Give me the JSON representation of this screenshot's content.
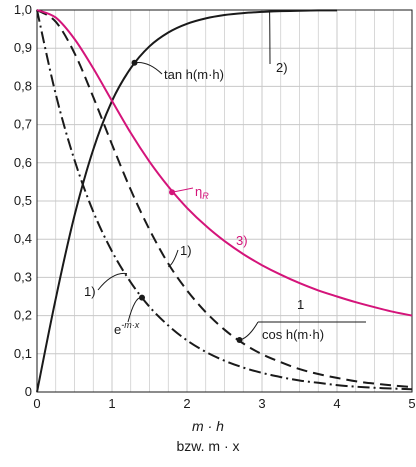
{
  "chart_data": {
    "type": "line",
    "xlim": [
      0,
      5
    ],
    "ylim": [
      0,
      1
    ],
    "grid": true,
    "x_ticks": [
      "0",
      "1",
      "2",
      "3",
      "4",
      "5"
    ],
    "y_ticks": [
      "0",
      "0,1",
      "0,2",
      "0,3",
      "0,4",
      "0,5",
      "0,6",
      "0,7",
      "0,8",
      "0,9",
      "1,0"
    ],
    "xlabel": "m · h",
    "xlabel_alt": "bzw.  m · x",
    "colors": {
      "black": "#1a1a1a",
      "magenta": "#d4147a",
      "grid": "#c8c8c8"
    },
    "series": [
      {
        "x": [
          0,
          0.25,
          0.5,
          0.75,
          1,
          1.25,
          1.5,
          1.75,
          2,
          2.25,
          2.5,
          2.75,
          3,
          3.25,
          3.5,
          3.75,
          4,
          4.25,
          4.5,
          4.75,
          5
        ],
        "values": [
          1.0,
          0.969,
          0.887,
          0.772,
          0.648,
          0.529,
          0.425,
          0.336,
          0.266,
          0.209,
          0.163,
          0.127,
          0.099,
          0.078,
          0.06,
          0.047,
          0.037,
          0.028,
          0.022,
          0.017,
          0.013
        ],
        "style": "dashed",
        "color": "#1a1a1a"
      },
      {
        "x": [
          0,
          0.25,
          0.5,
          0.75,
          1,
          1.25,
          1.5,
          1.75,
          2,
          2.25,
          2.5,
          2.75,
          3,
          3.25,
          3.5,
          3.75,
          4,
          4.25,
          4.5,
          4.75,
          5
        ],
        "values": [
          1.0,
          0.779,
          0.607,
          0.472,
          0.368,
          0.287,
          0.223,
          0.174,
          0.135,
          0.105,
          0.082,
          0.064,
          0.05,
          0.039,
          0.03,
          0.024,
          0.018,
          0.014,
          0.011,
          0.009,
          0.007
        ],
        "style": "dashdot",
        "color": "#1a1a1a"
      },
      {
        "x": [
          0,
          0.25,
          0.5,
          0.75,
          1,
          1.25,
          1.5,
          1.75,
          2,
          2.25,
          2.5,
          2.75,
          3,
          3.25,
          3.5,
          3.75,
          4
        ],
        "values": [
          0,
          0.245,
          0.462,
          0.635,
          0.762,
          0.848,
          0.905,
          0.941,
          0.964,
          0.978,
          0.987,
          0.992,
          0.995,
          0.997,
          0.998,
          0.999,
          0.999
        ],
        "style": "solid",
        "color": "#1a1a1a"
      },
      {
        "x": [
          0,
          0.25,
          0.5,
          0.75,
          1,
          1.25,
          1.5,
          1.75,
          2,
          2.25,
          2.5,
          2.75,
          3,
          3.25,
          3.5,
          3.75,
          4,
          4.25,
          4.5,
          4.75,
          5
        ],
        "values": [
          1.0,
          0.98,
          0.924,
          0.847,
          0.762,
          0.678,
          0.603,
          0.538,
          0.482,
          0.435,
          0.395,
          0.361,
          0.332,
          0.307,
          0.285,
          0.266,
          0.25,
          0.235,
          0.222,
          0.21,
          0.2
        ],
        "style": "solid",
        "color": "#d4147a"
      }
    ],
    "annotations": [
      {
        "id": "tanh",
        "text": "tan h(m·h)",
        "point": [
          1.3,
          0.862
        ]
      },
      {
        "id": "label2",
        "text": "2)",
        "point": [
          3.1,
          0.996
        ]
      },
      {
        "id": "eta",
        "text": "η",
        "sub": "R",
        "point": [
          1.8,
          0.523
        ]
      },
      {
        "id": "label3",
        "text": "3)",
        "point": [
          2.7,
          0.37
        ]
      },
      {
        "id": "label1a",
        "text": "1)",
        "point": [
          1.75,
          0.328
        ]
      },
      {
        "id": "label1b",
        "text": "1)",
        "point": [
          1.2,
          0.31
        ]
      },
      {
        "id": "exp",
        "text": "e",
        "sup": "-m·x",
        "point": [
          1.4,
          0.247
        ]
      },
      {
        "id": "cosh",
        "text_num": "1",
        "text_den": "cos h(m·h)",
        "point": [
          2.7,
          0.136
        ]
      }
    ]
  }
}
